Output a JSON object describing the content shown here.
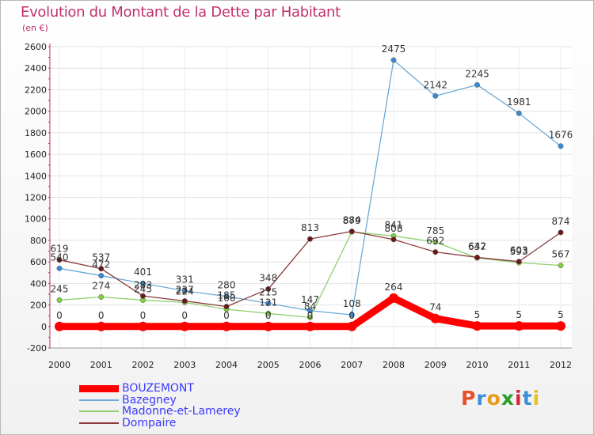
{
  "title": "Evolution du Montant de la Dette par Habitant",
  "unit": "(en €)",
  "logo": {
    "letters": [
      "P",
      "r",
      "o",
      "x",
      "i",
      "t",
      "i"
    ],
    "colors": [
      "#e8502a",
      "#3a8fd8",
      "#e89a1a",
      "#2aa02a",
      "#d8283a",
      "#3a8fd8",
      "#e8c01a"
    ]
  },
  "chart_data": {
    "type": "line",
    "x": [
      "2000",
      "2001",
      "2002",
      "2003",
      "2004",
      "2005",
      "2006",
      "2007",
      "2008",
      "2009",
      "2010",
      "2011",
      "2012"
    ],
    "ylim": [
      -200,
      2600
    ],
    "yticks": [
      "-200",
      "0",
      "200",
      "400",
      "600",
      "800",
      "1000",
      "1200",
      "1400",
      "1600",
      "1800",
      "2000",
      "2200",
      "2400",
      "2600"
    ],
    "grid": true,
    "legend_position": "bottom-left",
    "series": [
      {
        "name": "BOUZEMONT",
        "color": "#ff0000",
        "marker": "#ff0000",
        "values": [
          0,
          0,
          0,
          0,
          0,
          0,
          0,
          0,
          264,
          74,
          5,
          5,
          5
        ],
        "labels": [
          "0",
          "0",
          "0",
          "0",
          "0",
          "0",
          "0",
          "0",
          "264",
          "74",
          "5",
          "5",
          "5"
        ]
      },
      {
        "name": "Bazegney",
        "color": "#6aaad8",
        "marker": "#3a8ad0",
        "values": [
          540,
          472,
          401,
          331,
          280,
          215,
          147,
          108,
          2475,
          2142,
          2245,
          1981,
          1676
        ],
        "labels": [
          "540",
          "472",
          "401",
          "331",
          "280",
          "215",
          "147",
          "108",
          "2475",
          "2142",
          "2245",
          "1981",
          "1676"
        ]
      },
      {
        "name": "Madonne-et-Lamerey",
        "color": "#90d070",
        "marker": "#80d040",
        "values": [
          245,
          274,
          245,
          224,
          160,
          121,
          84,
          879,
          841,
          785,
          637,
          593,
          567
        ],
        "labels": [
          "245",
          "274",
          "245",
          "224",
          "160",
          "121",
          "84",
          "879",
          "841",
          "785",
          "637",
          "593",
          "567"
        ]
      },
      {
        "name": "Dompaire",
        "color": "#8a3a3a",
        "marker": "#6a1818",
        "values": [
          619,
          537,
          283,
          237,
          185,
          348,
          813,
          884,
          808,
          692,
          642,
          603,
          874
        ],
        "labels": [
          "619",
          "537",
          "283",
          "237",
          "185",
          "348",
          "813",
          "884",
          "808",
          "692",
          "642",
          "603",
          "874"
        ]
      }
    ]
  }
}
